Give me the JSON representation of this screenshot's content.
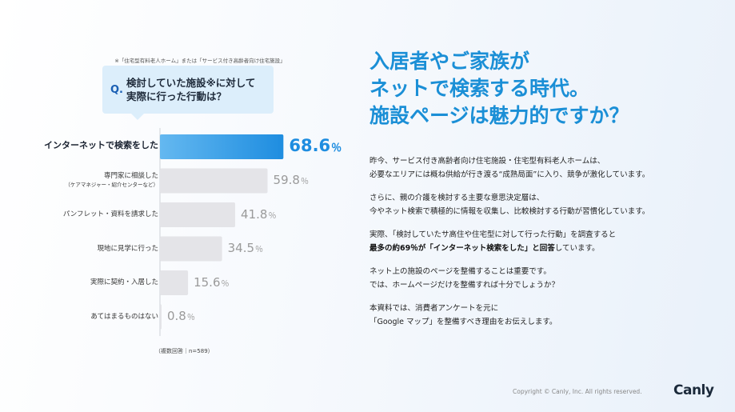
{
  "survey": {
    "footnote_top": "※「住宅型有料老人ホーム」または「サービス付き高齢者向け住宅施設」",
    "question_mark": "Q.",
    "question_line1": "検討していた施設※に対して",
    "question_line2": "実際に行った行動は？",
    "footnote_bottom": "（複数回答｜n=589）"
  },
  "chart_data": {
    "type": "bar",
    "orientation": "horizontal",
    "categories": [
      "インターネットで検索をした",
      "専門家に相談した",
      "パンフレット・資料を請求した",
      "現地に見学に行った",
      "実際に契約・入居した",
      "あてはまるものはない"
    ],
    "category_subtitles": [
      "",
      "（ケアマネジャー・紹介センターなど）",
      "",
      "",
      "",
      ""
    ],
    "values": [
      68.6,
      59.8,
      41.8,
      34.5,
      15.6,
      0.8
    ],
    "unit": "％",
    "highlight_index": 0,
    "colors": {
      "highlight": "#1e8de0",
      "default": "#e4e4e8",
      "highlight_gradient_start": "#64b8f0"
    },
    "xlim": [
      0,
      100
    ]
  },
  "headline": {
    "line1": "入居者やご家族が",
    "line2": "ネットで検索する時代。",
    "line3": "施設ページは魅力的ですか？"
  },
  "body": {
    "p1_l1": "昨今、サービス付き高齢者向け住宅施設・住宅型有料老人ホームは、",
    "p1_l2": "必要なエリアには概ね供給が行き渡る“成熟局面”に入り、競争が激化しています。",
    "p2_l1": "さらに、親の介護を検討する主要な意思決定層は、",
    "p2_l2": "今やネット検索で積極的に情報を収集し、比較検討する行動が習慣化しています。",
    "p3_l1": "実際、「検討していたサ高住や住宅型に対して行った行動」を調査すると",
    "p3_l2_bold": "最多の約69％が「インターネット検索をした」と回答",
    "p3_l2_rest": "しています。",
    "p4_l1": "ネット上の施設のページを整備することは重要です。",
    "p4_l2": "では、ホームページだけを整備すれば十分でしょうか？",
    "p5_l1": "本資料では、消費者アンケートを元に",
    "p5_l2": "「Google マップ」を整備すべき理由をお伝えします。"
  },
  "footer": {
    "copyright": "Copyright © Canly, Inc. All rights reserved.",
    "logo": "Canly"
  }
}
